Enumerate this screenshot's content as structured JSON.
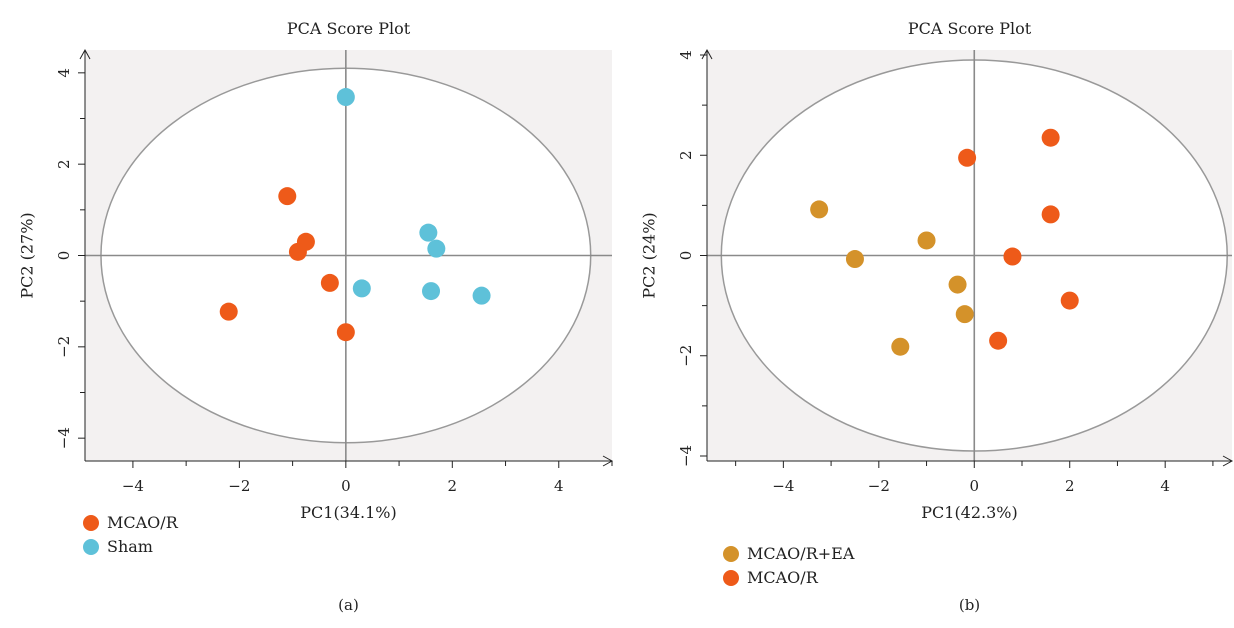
{
  "chart_data": [
    {
      "type": "scatter",
      "title": "PCA Score Plot",
      "xlabel": "PC1(34.1%)",
      "ylabel": "PC2 (27%)",
      "xlim": [
        -4.9,
        5
      ],
      "ylim": [
        -4.5,
        4.5
      ],
      "xticks": [
        -4,
        -2,
        0,
        2,
        4
      ],
      "yticks": [
        -4,
        -2,
        0,
        2,
        4
      ],
      "ellipse": {
        "rx": 4.6,
        "ry": 4.1
      },
      "series": [
        {
          "name": "MCAO/R",
          "color": "#ee5a19",
          "points": [
            [
              -1.1,
              1.3
            ],
            [
              -0.75,
              0.3
            ],
            [
              -0.9,
              0.08
            ],
            [
              -0.3,
              -0.6
            ],
            [
              -2.2,
              -1.23
            ],
            [
              0.0,
              -1.68
            ]
          ]
        },
        {
          "name": "Sham",
          "color": "#5ec1d9",
          "points": [
            [
              0.0,
              3.47
            ],
            [
              1.55,
              0.5
            ],
            [
              1.7,
              0.15
            ],
            [
              0.3,
              -0.72
            ],
            [
              1.6,
              -0.78
            ],
            [
              2.55,
              -0.88
            ]
          ]
        }
      ],
      "caption": "(a)"
    },
    {
      "type": "scatter",
      "title": "PCA Score Plot",
      "xlabel": "PC1(42.3%)",
      "ylabel": "PC2 (24%)",
      "xlim": [
        -5.6,
        5.4
      ],
      "ylim": [
        -4.1,
        4.1
      ],
      "xticks": [
        -4,
        -2,
        0,
        2,
        4
      ],
      "yticks": [
        -4,
        -2,
        0,
        2,
        4
      ],
      "ellipse": {
        "rx": 5.3,
        "ry": 3.9
      },
      "series": [
        {
          "name": "MCAO/R+EA",
          "color": "#d4922a",
          "points": [
            [
              -3.25,
              0.92
            ],
            [
              -2.5,
              -0.07
            ],
            [
              -1.0,
              0.3
            ],
            [
              -0.35,
              -0.58
            ],
            [
              -0.2,
              -1.17
            ],
            [
              -1.55,
              -1.82
            ]
          ]
        },
        {
          "name": "MCAO/R",
          "color": "#ee5a19",
          "points": [
            [
              -0.15,
              1.95
            ],
            [
              1.6,
              2.35
            ],
            [
              1.6,
              0.82
            ],
            [
              0.8,
              -0.02
            ],
            [
              2.0,
              -0.9
            ],
            [
              0.5,
              -1.7
            ]
          ]
        }
      ],
      "caption": "(b)"
    }
  ]
}
